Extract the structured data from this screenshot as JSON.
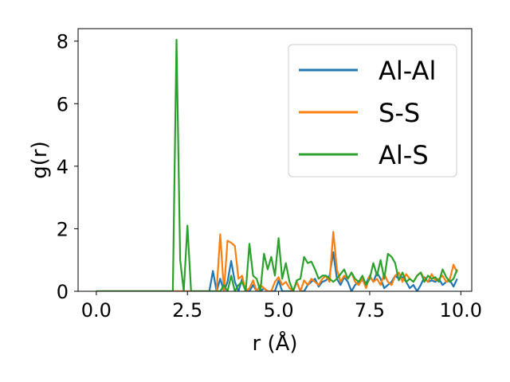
{
  "chart_data": {
    "type": "line",
    "title": "",
    "xlabel": "r (Å)",
    "ylabel": "g(r)",
    "xlim": [
      -0.5,
      10.3
    ],
    "ylim": [
      0,
      8.4
    ],
    "xticks": [
      "0.0",
      "2.5",
      "5.0",
      "7.5",
      "10.0"
    ],
    "yticks": [
      "0",
      "2",
      "4",
      "6",
      "8"
    ],
    "legend_position": "top-right",
    "series": [
      {
        "name": "Al-Al",
        "color": "#1f77b4",
        "x": [
          0.0,
          3.1,
          3.2,
          3.3,
          3.4,
          3.5,
          3.6,
          3.7,
          3.8,
          3.9,
          4.0,
          4.1,
          4.2,
          4.3,
          4.4,
          4.5,
          4.6,
          4.7,
          4.8,
          4.9,
          5.0,
          5.1,
          5.2,
          5.3,
          5.4,
          5.5,
          5.6,
          5.7,
          5.8,
          5.9,
          6.0,
          6.1,
          6.2,
          6.3,
          6.4,
          6.5,
          6.6,
          6.7,
          6.8,
          6.9,
          7.0,
          7.1,
          7.2,
          7.3,
          7.4,
          7.5,
          7.6,
          7.7,
          7.8,
          7.9,
          8.0,
          8.1,
          8.2,
          8.3,
          8.4,
          8.5,
          8.6,
          8.7,
          8.8,
          8.9,
          9.0,
          9.1,
          9.2,
          9.3,
          9.4,
          9.5,
          9.6,
          9.7,
          9.8,
          9.9
        ],
        "y": [
          0.0,
          0.0,
          0.65,
          0.0,
          0.4,
          0.0,
          0.3,
          0.97,
          0.3,
          0.0,
          0.4,
          0.0,
          0.0,
          0.2,
          0.0,
          0.0,
          0.1,
          0.0,
          0.0,
          0.0,
          0.35,
          0.0,
          0.0,
          0.0,
          0.0,
          0.3,
          0.0,
          0.0,
          0.2,
          0.3,
          0.4,
          0.15,
          0.3,
          0.35,
          0.5,
          1.25,
          0.4,
          0.2,
          0.45,
          0.3,
          0.0,
          0.2,
          0.3,
          0.35,
          0.25,
          0.5,
          0.3,
          0.6,
          0.4,
          0.1,
          0.2,
          0.3,
          0.5,
          0.4,
          0.45,
          0.3,
          0.1,
          0.2,
          0.0,
          0.2,
          0.45,
          0.3,
          0.35,
          0.3,
          0.4,
          0.2,
          0.3,
          0.35,
          0.15,
          0.4
        ]
      },
      {
        "name": "S-S",
        "color": "#ff7f0e",
        "x": [
          0.0,
          3.1,
          3.2,
          3.3,
          3.4,
          3.5,
          3.6,
          3.7,
          3.8,
          3.9,
          4.0,
          4.1,
          4.2,
          4.3,
          4.4,
          4.5,
          4.6,
          4.7,
          4.8,
          4.9,
          5.0,
          5.1,
          5.2,
          5.3,
          5.4,
          5.5,
          5.6,
          5.7,
          5.8,
          5.9,
          6.0,
          6.1,
          6.2,
          6.3,
          6.4,
          6.5,
          6.6,
          6.7,
          6.8,
          6.9,
          7.0,
          7.1,
          7.2,
          7.3,
          7.4,
          7.5,
          7.6,
          7.7,
          7.8,
          7.9,
          8.0,
          8.1,
          8.2,
          8.3,
          8.4,
          8.5,
          8.6,
          8.7,
          8.8,
          8.9,
          9.0,
          9.1,
          9.2,
          9.3,
          9.4,
          9.5,
          9.6,
          9.7,
          9.8,
          9.9
        ],
        "y": [
          0.0,
          0.0,
          0.0,
          0.0,
          1.82,
          0.0,
          1.62,
          1.55,
          1.45,
          0.4,
          0.5,
          0.0,
          0.1,
          0.35,
          0.0,
          0.2,
          0.1,
          0.0,
          0.0,
          0.3,
          0.45,
          0.2,
          0.3,
          0.1,
          0.0,
          0.3,
          0.0,
          0.35,
          0.2,
          0.4,
          0.3,
          0.2,
          0.4,
          0.5,
          0.3,
          1.9,
          0.7,
          0.3,
          0.5,
          0.4,
          0.6,
          0.3,
          0.2,
          0.4,
          0.1,
          0.5,
          0.3,
          0.4,
          0.2,
          0.55,
          0.3,
          0.2,
          0.5,
          0.6,
          0.3,
          0.55,
          0.4,
          0.3,
          0.5,
          0.6,
          0.4,
          0.3,
          0.55,
          0.35,
          0.4,
          0.5,
          0.3,
          0.4,
          0.85,
          0.6
        ]
      },
      {
        "name": "Al-S",
        "color": "#2ca02c",
        "x": [
          0.0,
          2.1,
          2.2,
          2.3,
          2.4,
          2.5,
          2.6,
          3.4,
          3.5,
          3.6,
          3.7,
          3.8,
          3.9,
          4.0,
          4.1,
          4.2,
          4.3,
          4.4,
          4.5,
          4.6,
          4.7,
          4.8,
          4.9,
          5.0,
          5.1,
          5.2,
          5.3,
          5.4,
          5.5,
          5.6,
          5.7,
          5.8,
          5.9,
          6.0,
          6.1,
          6.2,
          6.3,
          6.4,
          6.5,
          6.6,
          6.7,
          6.8,
          6.9,
          7.0,
          7.1,
          7.2,
          7.3,
          7.4,
          7.5,
          7.6,
          7.7,
          7.8,
          7.9,
          8.0,
          8.1,
          8.2,
          8.3,
          8.4,
          8.5,
          8.6,
          8.7,
          8.8,
          8.9,
          9.0,
          9.1,
          9.2,
          9.3,
          9.4,
          9.5,
          9.6,
          9.7,
          9.8,
          9.9
        ],
        "y": [
          0.0,
          0.0,
          8.05,
          1.0,
          0.0,
          2.1,
          0.0,
          0.0,
          0.2,
          0.0,
          0.5,
          0.0,
          0.2,
          0.3,
          0.0,
          1.52,
          0.5,
          0.4,
          0.0,
          1.2,
          0.7,
          1.1,
          0.5,
          1.7,
          0.4,
          0.9,
          0.3,
          0.0,
          0.35,
          0.4,
          1.1,
          0.9,
          0.95,
          0.7,
          0.4,
          0.5,
          0.5,
          0.4,
          0.3,
          0.4,
          0.55,
          0.7,
          0.4,
          0.6,
          0.4,
          0.3,
          0.5,
          0.2,
          0.4,
          0.9,
          0.5,
          1.0,
          0.4,
          1.2,
          1.1,
          0.9,
          0.35,
          0.6,
          0.3,
          0.4,
          0.3,
          0.5,
          0.6,
          0.3,
          0.5,
          0.4,
          0.45,
          0.3,
          0.7,
          0.45,
          0.3,
          0.4,
          0.7
        ]
      }
    ]
  }
}
